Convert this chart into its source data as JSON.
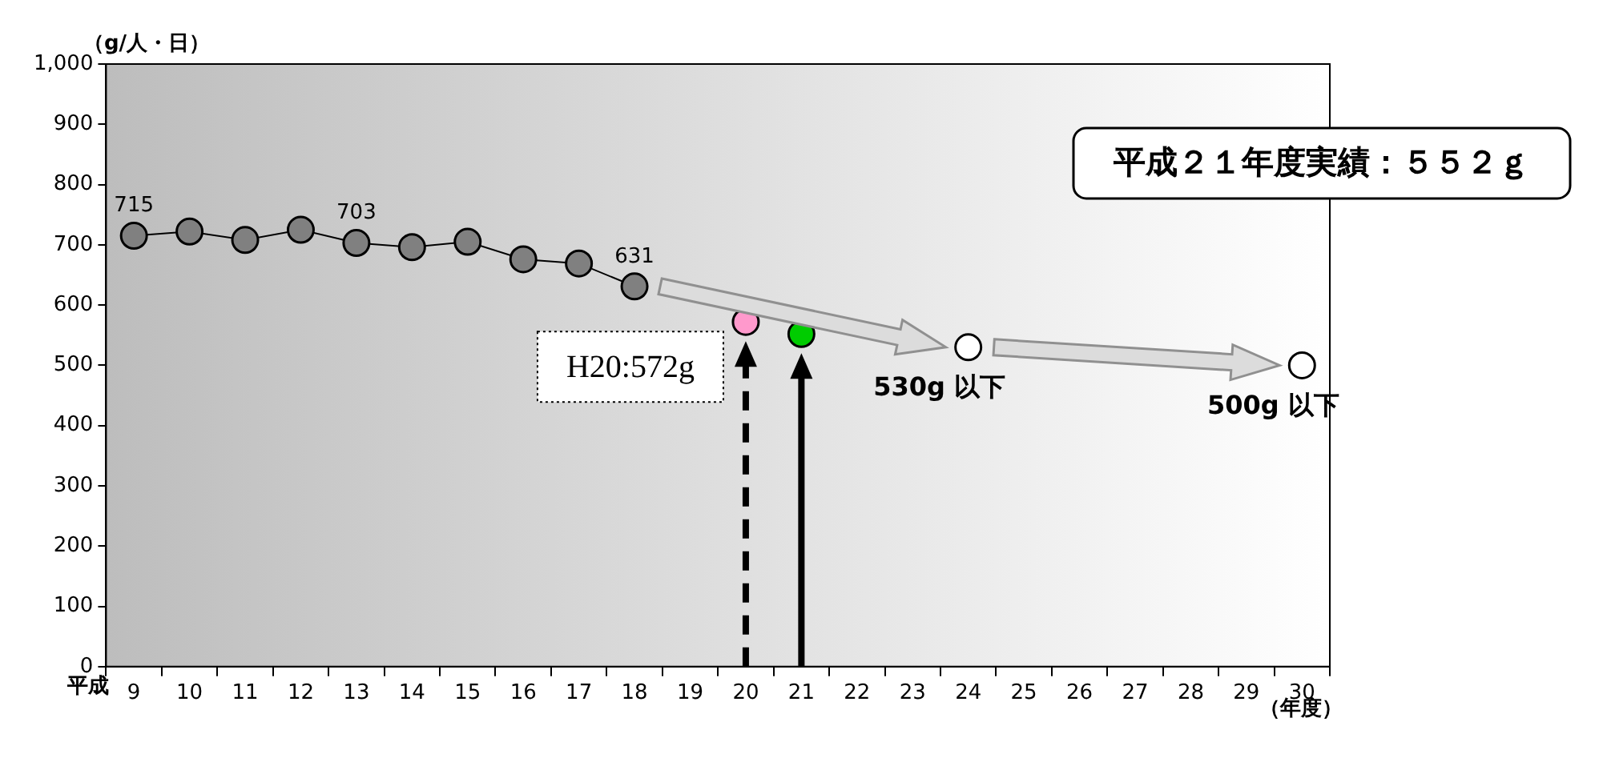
{
  "chart_data": {
    "type": "line",
    "title": "平成２１年度実績：５５２ｇ",
    "ylabel": "（g/人・日）",
    "xlabel": "（年度）",
    "categories": [
      "9",
      "10",
      "11",
      "12",
      "13",
      "14",
      "15",
      "16",
      "17",
      "18",
      "19",
      "20",
      "21",
      "22",
      "23",
      "24",
      "25",
      "26",
      "27",
      "28",
      "29",
      "30"
    ],
    "series": [
      {
        "type": "line",
        "color": "#808080",
        "x": [
          "9",
          "10",
          "11",
          "12",
          "13",
          "14",
          "15",
          "16",
          "17",
          "18"
        ],
        "values": [
          715,
          722,
          708,
          725,
          703,
          696,
          705,
          676,
          669,
          631
        ],
        "value_labels": [
          "715",
          null,
          null,
          null,
          "703",
          null,
          null,
          null,
          null,
          "631"
        ]
      },
      {
        "type": "scatter",
        "color": "#ff99cc",
        "x": [
          "20"
        ],
        "values": [
          572
        ]
      },
      {
        "type": "scatter",
        "color": "#00cc00",
        "x": [
          "21"
        ],
        "values": [
          552
        ]
      },
      {
        "type": "scatter",
        "color": "#ffffff",
        "x": [
          "24",
          "30"
        ],
        "values": [
          530,
          500
        ],
        "value_labels": [
          "530g 以下",
          "500g 以下"
        ]
      }
    ],
    "ylim": [
      0,
      1000
    ],
    "yticks": [
      0,
      100,
      200,
      300,
      400,
      500,
      600,
      700,
      800,
      900,
      {
        "value": 1000,
        "label": "1,000"
      }
    ],
    "ref_lines": [
      {
        "axis": "x",
        "value": "20",
        "color": "#000000",
        "line_style": "dashed"
      },
      {
        "axis": "x",
        "value": "21",
        "color": "#000000",
        "line_style": "solid"
      }
    ],
    "annotations": [
      {
        "text": "H20:572g",
        "x": "20",
        "y": 572
      },
      "平成"
    ],
    "grid": false,
    "legend": false,
    "marker": "circle"
  }
}
